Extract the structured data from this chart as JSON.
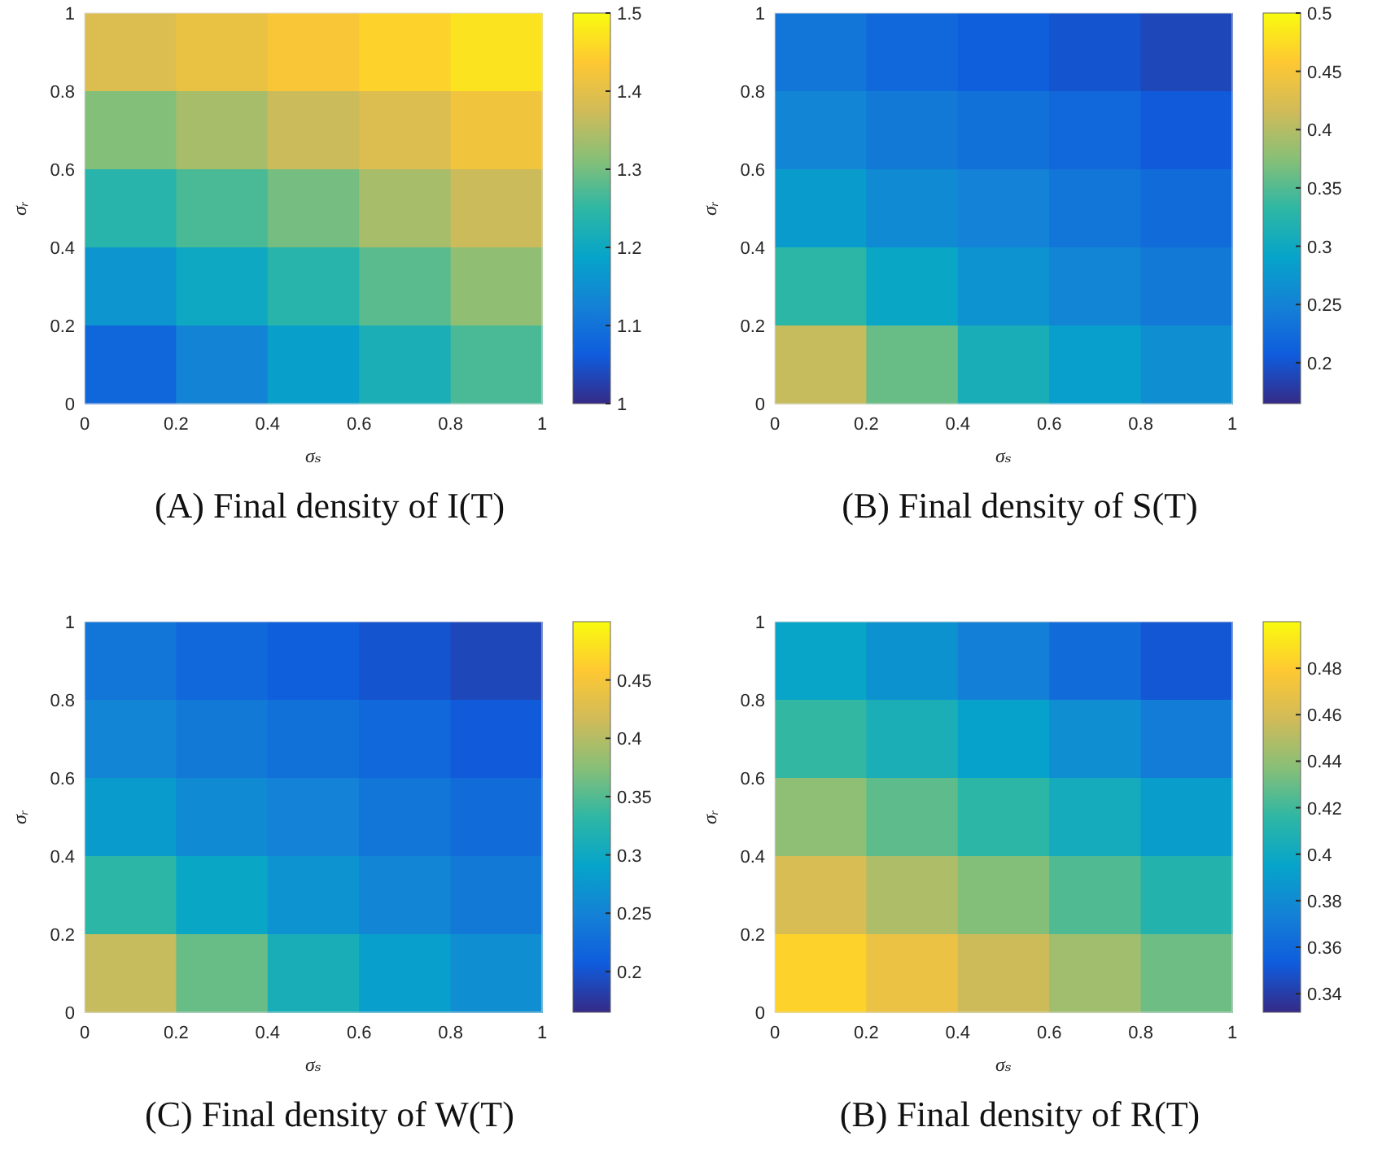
{
  "chart_data": [
    {
      "type": "heatmap",
      "title": "(A) Final density of I(T)",
      "xlabel": "σₛ",
      "ylabel": "σᵣ",
      "xlim": [
        0,
        1
      ],
      "ylim": [
        0,
        1
      ],
      "xticks": [
        0,
        0.2,
        0.4,
        0.6,
        0.8,
        1
      ],
      "yticks": [
        0,
        0.2,
        0.4,
        0.6,
        0.8,
        1
      ],
      "clim": [
        1,
        1.5
      ],
      "cticks": [
        1,
        1.1,
        1.2,
        1.3,
        1.4,
        1.5
      ],
      "cells": [
        [
          1.39,
          1.41,
          1.43,
          1.45,
          1.47
        ],
        [
          1.31,
          1.34,
          1.37,
          1.39,
          1.42
        ],
        [
          1.24,
          1.27,
          1.3,
          1.34,
          1.37
        ],
        [
          1.16,
          1.2,
          1.24,
          1.28,
          1.32
        ],
        [
          1.08,
          1.13,
          1.18,
          1.22,
          1.27
        ]
      ]
    },
    {
      "type": "heatmap",
      "title": "(B) Final density of S(T)",
      "xlabel": "σₛ",
      "ylabel": "σᵣ",
      "xlim": [
        0,
        1
      ],
      "ylim": [
        0,
        1
      ],
      "xticks": [
        0,
        0.2,
        0.4,
        0.6,
        0.8,
        1
      ],
      "yticks": [
        0,
        0.2,
        0.4,
        0.6,
        0.8,
        1
      ],
      "clim": [
        0.165,
        0.5
      ],
      "cticks": [
        0.2,
        0.25,
        0.3,
        0.35,
        0.4,
        0.45,
        0.5
      ],
      "cells": [
        [
          0.235,
          0.22,
          0.21,
          0.2,
          0.19
        ],
        [
          0.255,
          0.24,
          0.23,
          0.22,
          0.205
        ],
        [
          0.28,
          0.26,
          0.25,
          0.235,
          0.225
        ],
        [
          0.33,
          0.295,
          0.27,
          0.255,
          0.24
        ],
        [
          0.41,
          0.36,
          0.31,
          0.285,
          0.265
        ]
      ]
    },
    {
      "type": "heatmap",
      "title": "(C) Final density of W(T)",
      "xlabel": "σₛ",
      "ylabel": "σᵣ",
      "xlim": [
        0,
        1
      ],
      "ylim": [
        0,
        1
      ],
      "xticks": [
        0,
        0.2,
        0.4,
        0.6,
        0.8,
        1
      ],
      "yticks": [
        0,
        0.2,
        0.4,
        0.6,
        0.8,
        1
      ],
      "clim": [
        0.165,
        0.5
      ],
      "cticks": [
        0.2,
        0.25,
        0.3,
        0.35,
        0.4,
        0.45
      ],
      "cells": [
        [
          0.235,
          0.22,
          0.21,
          0.2,
          0.19
        ],
        [
          0.255,
          0.24,
          0.23,
          0.22,
          0.205
        ],
        [
          0.28,
          0.26,
          0.25,
          0.235,
          0.225
        ],
        [
          0.33,
          0.295,
          0.27,
          0.255,
          0.24
        ],
        [
          0.41,
          0.36,
          0.31,
          0.285,
          0.265
        ]
      ]
    },
    {
      "type": "heatmap",
      "title": "(B) Final density of R(T)",
      "xlabel": "σₛ",
      "ylabel": "σᵣ",
      "xlim": [
        0,
        1
      ],
      "ylim": [
        0,
        1
      ],
      "xticks": [
        0,
        0.2,
        0.4,
        0.6,
        0.8,
        1
      ],
      "yticks": [
        0,
        0.2,
        0.4,
        0.6,
        0.8,
        1
      ],
      "clim": [
        0.332,
        0.5
      ],
      "cticks": [
        0.34,
        0.36,
        0.38,
        0.4,
        0.42,
        0.44,
        0.46,
        0.48
      ],
      "cells": [
        [
          0.396,
          0.384,
          0.373,
          0.362,
          0.351
        ],
        [
          0.417,
          0.406,
          0.394,
          0.382,
          0.371
        ],
        [
          0.439,
          0.427,
          0.415,
          0.403,
          0.391
        ],
        [
          0.461,
          0.448,
          0.436,
          0.424,
          0.411
        ],
        [
          0.483,
          0.47,
          0.457,
          0.444,
          0.431
        ]
      ]
    }
  ]
}
